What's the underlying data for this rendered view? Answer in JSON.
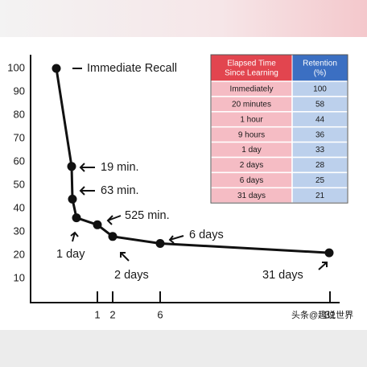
{
  "chart_data": {
    "type": "line",
    "values": [
      100,
      58,
      44,
      36,
      33,
      28,
      25,
      21
    ],
    "annotations": [
      "Immediate Recall",
      "19 min.",
      "63 min.",
      "525 min.",
      "1 day",
      "2 days",
      "6 days",
      "31 days"
    ],
    "ylim": [
      0,
      100
    ],
    "yticks": [
      10,
      20,
      30,
      40,
      50,
      60,
      70,
      80,
      90,
      100
    ],
    "xticks": [
      1,
      2,
      6,
      31
    ],
    "color": "#111111",
    "table": {
      "header": [
        "Elapsed Time Since Learning",
        "Retention (%)"
      ],
      "rows": [
        [
          "Immediately",
          "100"
        ],
        [
          "20 minutes",
          "58"
        ],
        [
          "1 hour",
          "44"
        ],
        [
          "9 hours",
          "36"
        ],
        [
          "1 day",
          "33"
        ],
        [
          "2 days",
          "28"
        ],
        [
          "6 days",
          "25"
        ],
        [
          "31 days",
          "21"
        ]
      ]
    },
    "watermark": "头条@趣说世界"
  }
}
